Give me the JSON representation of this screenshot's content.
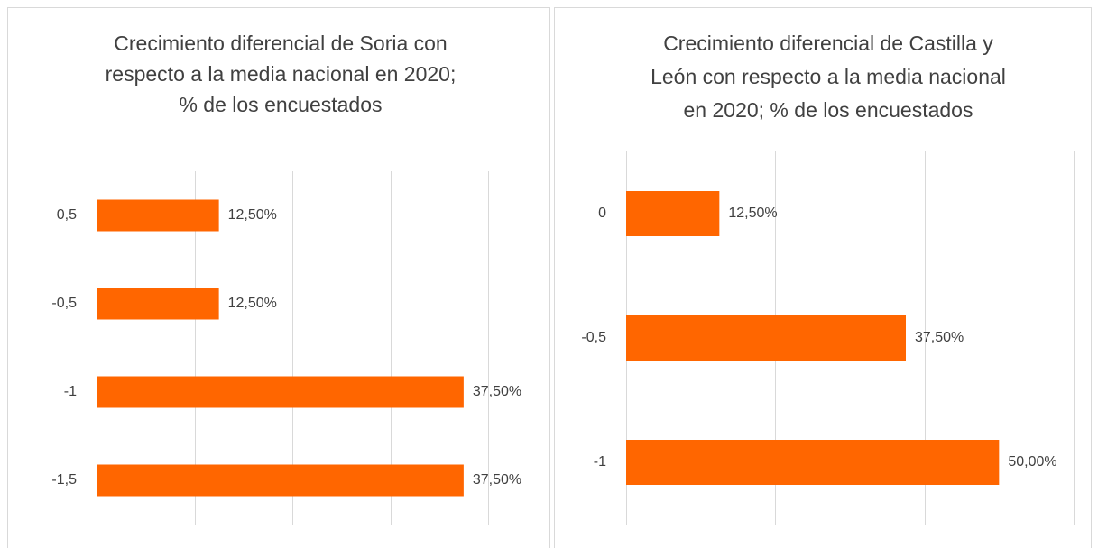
{
  "chart_data": [
    {
      "type": "barh",
      "title": [
        "Crecimiento diferencial de Soria con",
        "respecto a la media nacional en 2020;",
        "% de los encuestados"
      ],
      "categories": [
        "0,5",
        "-0,5",
        "-1",
        "-1,5"
      ],
      "values": [
        12.5,
        12.5,
        37.5,
        37.5
      ],
      "value_labels": [
        "12,50%",
        "12,50%",
        "37,50%",
        "37,50%"
      ],
      "color": "#ff6600",
      "xlim": [
        0,
        40
      ],
      "xticks": [
        0,
        10,
        20,
        30,
        40
      ],
      "grid": true
    },
    {
      "type": "barh",
      "title": [
        "Crecimiento diferencial de Castilla y",
        "León con respecto a la media nacional",
        "en 2020; % de los encuestados"
      ],
      "categories": [
        "0",
        "-0,5",
        "-1"
      ],
      "values": [
        12.5,
        37.5,
        50
      ],
      "value_labels": [
        "12,50%",
        "37,50%",
        "50,00%"
      ],
      "color": "#ff6600",
      "xlim": [
        0,
        60
      ],
      "xticks": [
        0,
        20,
        40,
        60
      ],
      "grid": true
    }
  ]
}
